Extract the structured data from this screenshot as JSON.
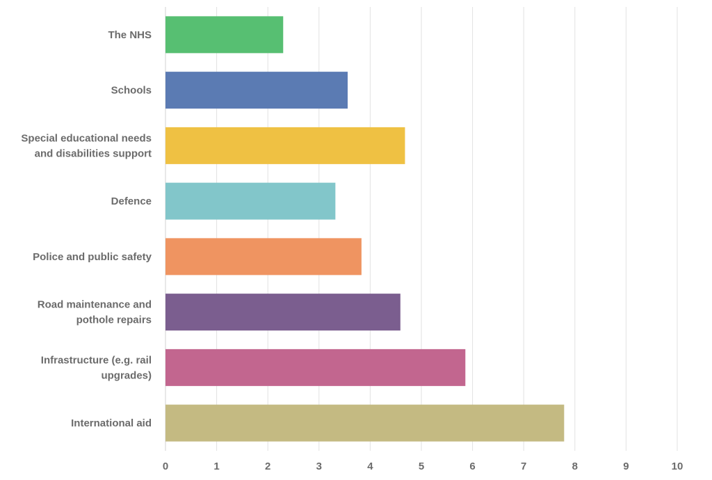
{
  "chart_data": {
    "type": "bar",
    "orientation": "horizontal",
    "categories": [
      [
        "The NHS"
      ],
      [
        "Schools"
      ],
      [
        "Special educational needs",
        "and disabilities support"
      ],
      [
        "Defence"
      ],
      [
        "Police and public safety"
      ],
      [
        "Road maintenance and",
        "pothole repairs"
      ],
      [
        "Infrastructure (e.g. rail",
        "upgrades)"
      ],
      [
        "International aid"
      ]
    ],
    "values": [
      2.3,
      3.56,
      4.68,
      3.32,
      3.83,
      4.59,
      5.86,
      7.79
    ],
    "colors": [
      "#57bf72",
      "#5b7bb3",
      "#efc143",
      "#82c6ca",
      "#ef9461",
      "#7b5e8f",
      "#c2668f",
      "#c4ba82"
    ],
    "xlim": [
      0,
      10
    ],
    "xticks": [
      "0",
      "1",
      "2",
      "3",
      "4",
      "5",
      "6",
      "7",
      "8",
      "9",
      "10"
    ],
    "grid": true,
    "title": "",
    "xlabel": "",
    "ylabel": ""
  }
}
